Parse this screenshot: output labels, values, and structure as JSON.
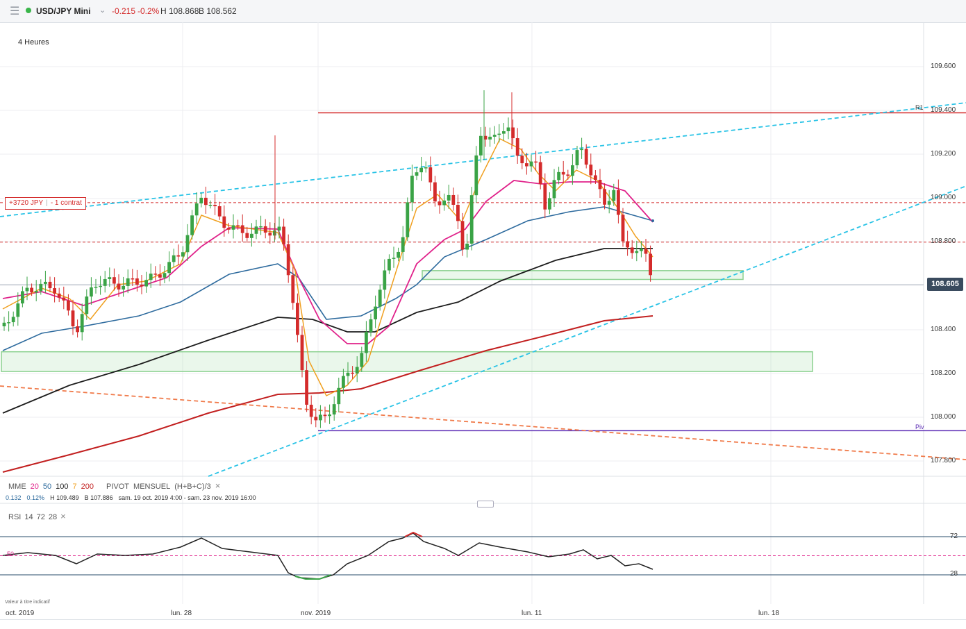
{
  "header": {
    "menu_icon": "menu-icon",
    "instrument": "USD/JPY Mini",
    "change": "-0.215",
    "change_pct": "-0.2%",
    "high": "H 108.868",
    "bid": "B 108.562"
  },
  "timeframe": "4 Heures",
  "position_label": {
    "pnl": "+3720 JPY",
    "contract": "- 1 contrat"
  },
  "last_price": "108.605",
  "indicator_legend": {
    "mme": "MME",
    "p20": "20",
    "p50": "50",
    "p100": "100",
    "p7": "7",
    "p200": "200",
    "pivot": "PIVOT",
    "mensuel": "MENSUEL",
    "formula": "(H+B+C)/3",
    "close": "×"
  },
  "indicator_values": {
    "v1": "0.132",
    "v2": "0.12%",
    "h": "H 109.489",
    "b": "B 107.886",
    "range": "sam. 19 oct. 2019 4:00 - sam. 23 nov. 2019 16:00"
  },
  "rsi_legend": {
    "name": "RSI",
    "p1": "14",
    "p2": "72",
    "p3": "28",
    "close": "×"
  },
  "disclaimer": "Valeur à titre indicatif",
  "colors": {
    "up": "#3aa346",
    "down": "#d42b2b",
    "ema20": "#e0218a",
    "ema50": "#2e6b9e",
    "ema100": "#1c1c1c",
    "ema7": "#f0a020",
    "ema200": "#c21f1f",
    "trend": "#29c3e6",
    "pivot": "#5b2bb5",
    "zone": "#8bd18f"
  },
  "chart_data": {
    "type": "candlestick",
    "instrument": "USD/JPY Mini",
    "timeframe": "4 Heures",
    "x_ticks": [
      "oct. 2019",
      "lun. 28",
      "nov. 2019",
      "lun. 11",
      "lun. 18"
    ],
    "y_ticks": [
      "109.600",
      "109.400",
      "109.200",
      "109.000",
      "108.800",
      "108.400",
      "108.200",
      "108.000",
      "107.800"
    ],
    "ylim": [
      107.7,
      109.7
    ],
    "levels": {
      "R1": 109.39,
      "Piv": 107.94,
      "position_entry": 108.98,
      "level_2": 108.8
    },
    "level_labels": {
      "R1": "R1",
      "Piv": "Piv"
    },
    "last_price": 108.605,
    "zones": [
      {
        "from_x": 2,
        "to_x": 1170,
        "low": 108.21,
        "high": 108.3
      },
      {
        "from_x": 608,
        "to_x": 1070,
        "low": 108.63,
        "high": 108.67
      }
    ],
    "rsi_levels": [
      72,
      50,
      28
    ],
    "rsi_tick_labels": [
      "72",
      "50",
      "28"
    ]
  }
}
